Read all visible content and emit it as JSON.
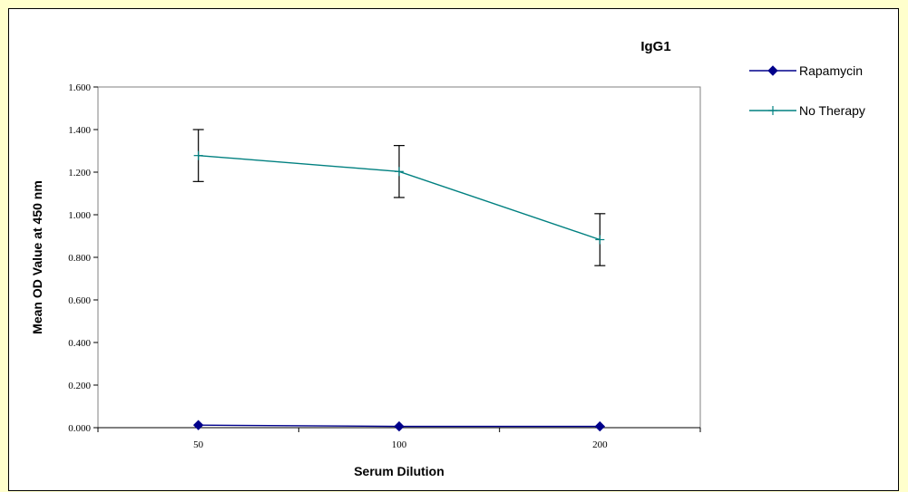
{
  "chart_data": {
    "type": "line",
    "title": "IgG1",
    "xlabel": "Serum Dilution",
    "ylabel": "Mean OD Value at 450 nm",
    "categories": [
      "50",
      "100",
      "200"
    ],
    "ylim": [
      0,
      1.6
    ],
    "yticks": [
      "0.000",
      "0.200",
      "0.400",
      "0.600",
      "0.800",
      "1.000",
      "1.200",
      "1.400",
      "1.600"
    ],
    "grid": false,
    "legend_position": "right",
    "series": [
      {
        "name": "Rapamycin",
        "values": [
          0.012,
          0.006,
          0.006
        ],
        "color": "#00008b",
        "marker": "diamond"
      },
      {
        "name": "No Therapy",
        "values": [
          1.278,
          1.203,
          0.883
        ],
        "error": [
          0.122,
          0.122,
          0.122
        ],
        "color": "#008080",
        "marker": "plus"
      }
    ]
  }
}
